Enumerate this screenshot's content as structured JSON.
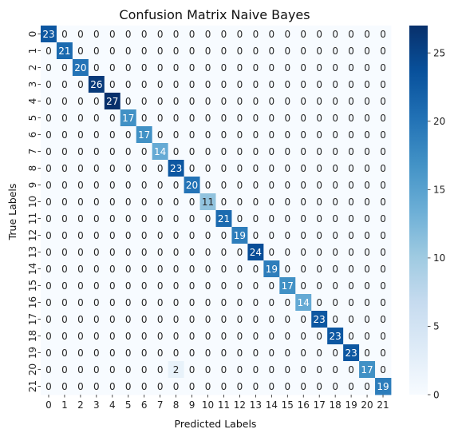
{
  "chart_data": {
    "type": "heatmap",
    "title": "Confusion Matrix Naive Bayes",
    "xlabel": "Predicted Labels",
    "ylabel": "True Labels",
    "x_labels": [
      "0",
      "1",
      "2",
      "3",
      "4",
      "5",
      "6",
      "7",
      "8",
      "9",
      "10",
      "11",
      "12",
      "13",
      "14",
      "15",
      "16",
      "17",
      "18",
      "19",
      "20",
      "21"
    ],
    "y_labels": [
      "0",
      "1",
      "2",
      "3",
      "4",
      "5",
      "6",
      "7",
      "8",
      "9",
      "10",
      "11",
      "12",
      "13",
      "14",
      "15",
      "16",
      "17",
      "18",
      "19",
      "20",
      "21"
    ],
    "matrix": [
      [
        23,
        0,
        0,
        0,
        0,
        0,
        0,
        0,
        0,
        0,
        0,
        0,
        0,
        0,
        0,
        0,
        0,
        0,
        0,
        0,
        0,
        0
      ],
      [
        0,
        21,
        0,
        0,
        0,
        0,
        0,
        0,
        0,
        0,
        0,
        0,
        0,
        0,
        0,
        0,
        0,
        0,
        0,
        0,
        0,
        0
      ],
      [
        0,
        0,
        20,
        0,
        0,
        0,
        0,
        0,
        0,
        0,
        0,
        0,
        0,
        0,
        0,
        0,
        0,
        0,
        0,
        0,
        0,
        0
      ],
      [
        0,
        0,
        0,
        26,
        0,
        0,
        0,
        0,
        0,
        0,
        0,
        0,
        0,
        0,
        0,
        0,
        0,
        0,
        0,
        0,
        0,
        0
      ],
      [
        0,
        0,
        0,
        0,
        27,
        0,
        0,
        0,
        0,
        0,
        0,
        0,
        0,
        0,
        0,
        0,
        0,
        0,
        0,
        0,
        0,
        0
      ],
      [
        0,
        0,
        0,
        0,
        0,
        17,
        0,
        0,
        0,
        0,
        0,
        0,
        0,
        0,
        0,
        0,
        0,
        0,
        0,
        0,
        0,
        0
      ],
      [
        0,
        0,
        0,
        0,
        0,
        0,
        17,
        0,
        0,
        0,
        0,
        0,
        0,
        0,
        0,
        0,
        0,
        0,
        0,
        0,
        0,
        0
      ],
      [
        0,
        0,
        0,
        0,
        0,
        0,
        0,
        14,
        0,
        0,
        0,
        0,
        0,
        0,
        0,
        0,
        0,
        0,
        0,
        0,
        0,
        0
      ],
      [
        0,
        0,
        0,
        0,
        0,
        0,
        0,
        0,
        23,
        0,
        0,
        0,
        0,
        0,
        0,
        0,
        0,
        0,
        0,
        0,
        0,
        0
      ],
      [
        0,
        0,
        0,
        0,
        0,
        0,
        0,
        0,
        0,
        20,
        0,
        0,
        0,
        0,
        0,
        0,
        0,
        0,
        0,
        0,
        0,
        0
      ],
      [
        0,
        0,
        0,
        0,
        0,
        0,
        0,
        0,
        0,
        0,
        11,
        0,
        0,
        0,
        0,
        0,
        0,
        0,
        0,
        0,
        0,
        0
      ],
      [
        0,
        0,
        0,
        0,
        0,
        0,
        0,
        0,
        0,
        0,
        0,
        21,
        0,
        0,
        0,
        0,
        0,
        0,
        0,
        0,
        0,
        0
      ],
      [
        0,
        0,
        0,
        0,
        0,
        0,
        0,
        0,
        0,
        0,
        0,
        0,
        19,
        0,
        0,
        0,
        0,
        0,
        0,
        0,
        0,
        0
      ],
      [
        0,
        0,
        0,
        0,
        0,
        0,
        0,
        0,
        0,
        0,
        0,
        0,
        0,
        24,
        0,
        0,
        0,
        0,
        0,
        0,
        0,
        0
      ],
      [
        0,
        0,
        0,
        0,
        0,
        0,
        0,
        0,
        0,
        0,
        0,
        0,
        0,
        0,
        19,
        0,
        0,
        0,
        0,
        0,
        0,
        0
      ],
      [
        0,
        0,
        0,
        0,
        0,
        0,
        0,
        0,
        0,
        0,
        0,
        0,
        0,
        0,
        0,
        17,
        0,
        0,
        0,
        0,
        0,
        0
      ],
      [
        0,
        0,
        0,
        0,
        0,
        0,
        0,
        0,
        0,
        0,
        0,
        0,
        0,
        0,
        0,
        0,
        14,
        0,
        0,
        0,
        0,
        0
      ],
      [
        0,
        0,
        0,
        0,
        0,
        0,
        0,
        0,
        0,
        0,
        0,
        0,
        0,
        0,
        0,
        0,
        0,
        23,
        0,
        0,
        0,
        0
      ],
      [
        0,
        0,
        0,
        0,
        0,
        0,
        0,
        0,
        0,
        0,
        0,
        0,
        0,
        0,
        0,
        0,
        0,
        0,
        23,
        0,
        0,
        0
      ],
      [
        0,
        0,
        0,
        0,
        0,
        0,
        0,
        0,
        0,
        0,
        0,
        0,
        0,
        0,
        0,
        0,
        0,
        0,
        0,
        23,
        0,
        0
      ],
      [
        0,
        0,
        0,
        0,
        0,
        0,
        0,
        0,
        2,
        0,
        0,
        0,
        0,
        0,
        0,
        0,
        0,
        0,
        0,
        0,
        17,
        0
      ],
      [
        0,
        0,
        0,
        0,
        0,
        0,
        0,
        0,
        0,
        0,
        0,
        0,
        0,
        0,
        0,
        0,
        0,
        0,
        0,
        0,
        0,
        19
      ]
    ],
    "colorbar": {
      "min": 0,
      "max": 27,
      "ticks": [
        0,
        5,
        10,
        15,
        20,
        25
      ],
      "colormap": "Blues"
    }
  }
}
